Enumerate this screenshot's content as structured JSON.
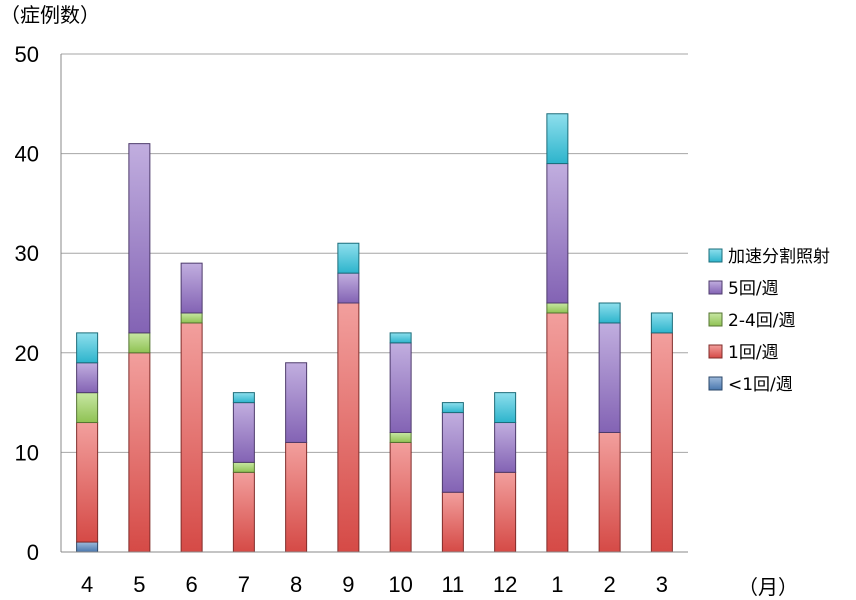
{
  "chart_data": {
    "type": "bar",
    "stacked": true,
    "ylabel": "（症例数）",
    "xlabel": "（月）",
    "ylim": [
      0,
      50
    ],
    "yticks": [
      "0",
      "10",
      "20",
      "30",
      "40",
      "50"
    ],
    "grid": true,
    "legend_position": "right",
    "categories": [
      "4",
      "5",
      "6",
      "7",
      "8",
      "9",
      "10",
      "11",
      "12",
      "1",
      "2",
      "3"
    ],
    "series": [
      {
        "name": "<1回/週",
        "color": "#4f81bd",
        "values": [
          1,
          0,
          0,
          0,
          0,
          0,
          0,
          0,
          0,
          0,
          0,
          0
        ]
      },
      {
        "name": "1回/週",
        "color": "#e8504c",
        "values": [
          12,
          20,
          23,
          8,
          11,
          25,
          11,
          6,
          8,
          24,
          12,
          22
        ]
      },
      {
        "name": "2-4回/週",
        "color": "#9bd35a",
        "values": [
          3,
          2,
          1,
          1,
          0,
          0,
          1,
          0,
          0,
          1,
          0,
          0
        ]
      },
      {
        "name": "5回/週",
        "color": "#8e6cc4",
        "values": [
          3,
          19,
          5,
          6,
          8,
          3,
          9,
          8,
          5,
          14,
          11,
          0
        ]
      },
      {
        "name": "加速分割照射",
        "color": "#31c4de",
        "values": [
          3,
          0,
          0,
          1,
          0,
          3,
          1,
          1,
          3,
          5,
          2,
          2
        ]
      }
    ]
  }
}
